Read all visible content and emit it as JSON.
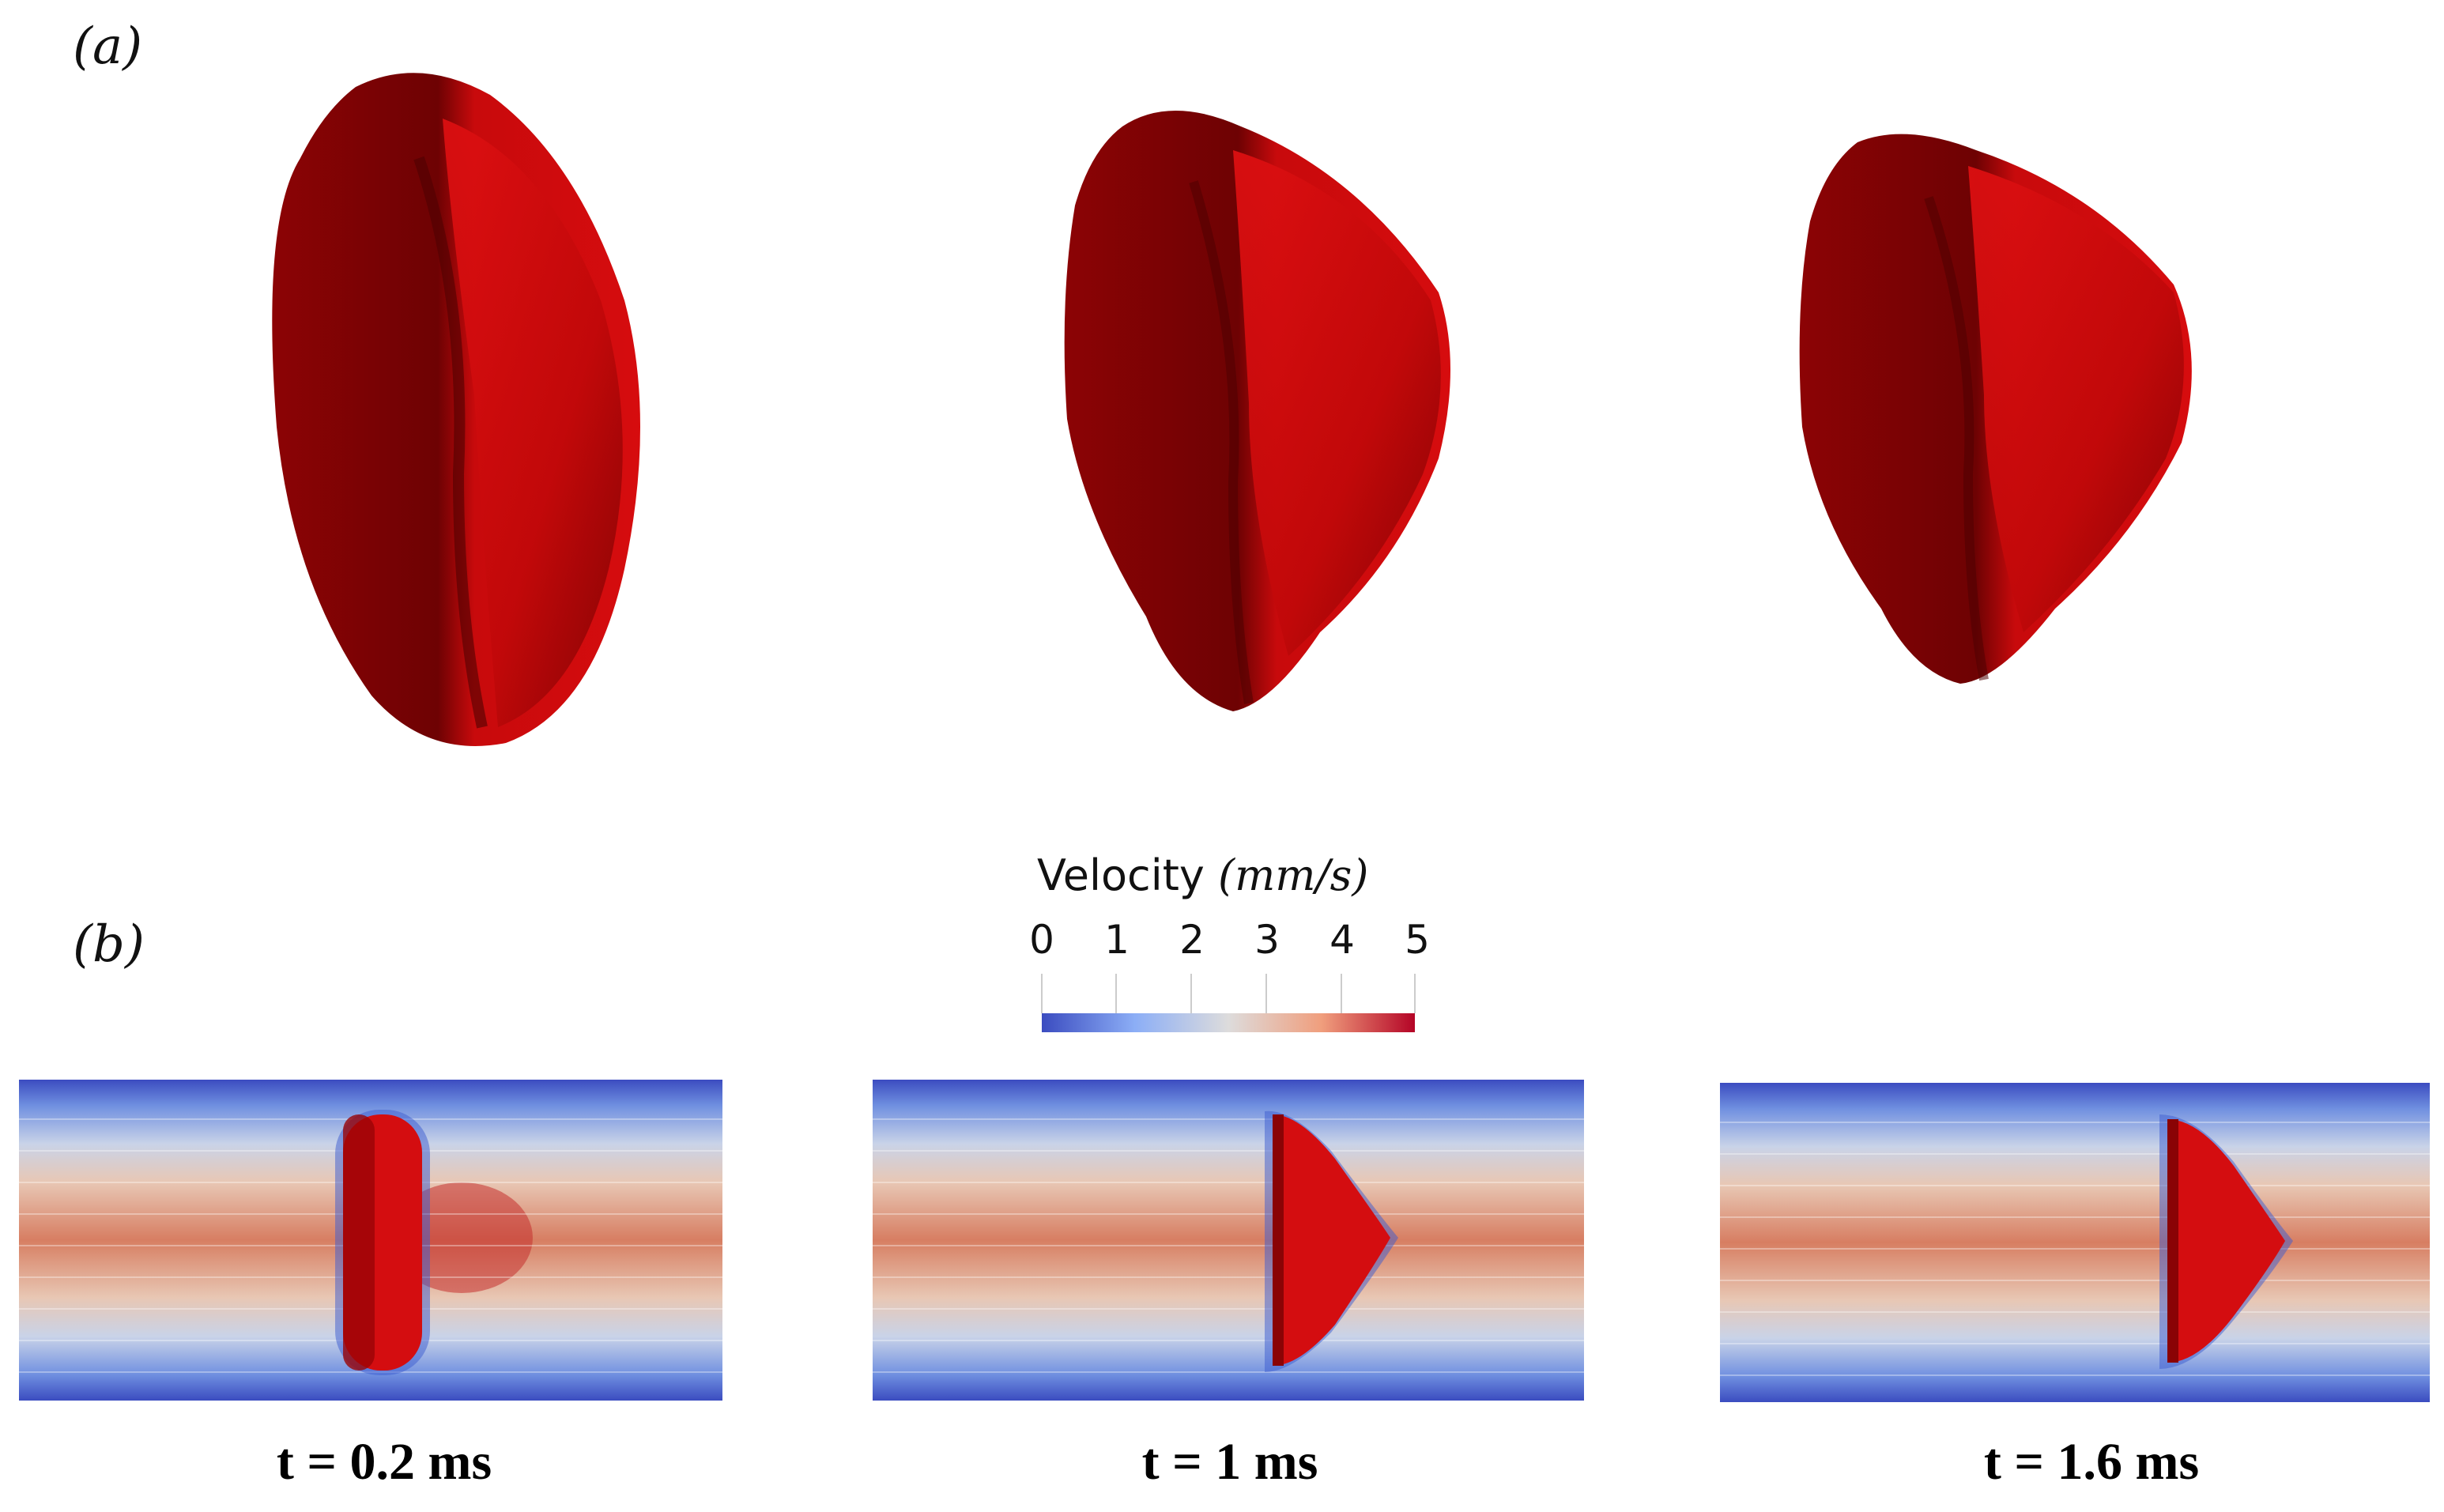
{
  "figure": {
    "panel_a_label": "(a)",
    "panel_b_label": "(b)",
    "colorbar": {
      "title": "Velocity",
      "unit": "(mm/s)",
      "ticks": [
        "0",
        "1",
        "2",
        "3",
        "4",
        "5"
      ],
      "range": [
        0,
        5
      ],
      "colors": [
        "#3b4cc0",
        "#dddcdc",
        "#b40426"
      ]
    },
    "cell_color": "#d40d10",
    "snapshots": [
      {
        "time": "t = 0.2 ms"
      },
      {
        "time": "t = 1 ms"
      },
      {
        "time": "t = 1.6 ms"
      }
    ]
  }
}
